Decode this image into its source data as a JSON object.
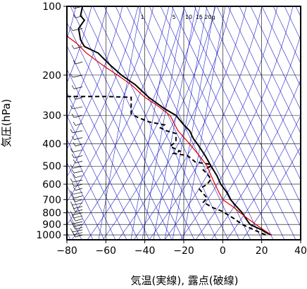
{
  "chart_data": {
    "type": "line",
    "xlabel": "気温(実線), 露点(破線)",
    "ylabel": "気圧(hPa)",
    "xlim": [
      -80,
      40
    ],
    "ylim": [
      1050,
      100
    ],
    "y_scale": "log",
    "x_ticks": [
      "−80",
      "−60",
      "−40",
      "−20",
      "0",
      "20",
      "40"
    ],
    "x_tick_values": [
      -80,
      -60,
      -40,
      -20,
      0,
      20,
      40
    ],
    "y_ticks": [
      "100",
      "200",
      "300",
      "400",
      "500",
      "600",
      "700",
      "800",
      "900",
      "1000"
    ],
    "y_tick_values": [
      100,
      200,
      300,
      400,
      500,
      600,
      700,
      800,
      900,
      1000
    ],
    "mixing_ratio_labels": [
      "1",
      "5",
      "10",
      "15",
      "20g"
    ],
    "colors": {
      "temperature": "#000000",
      "dewpoint": "#000000",
      "parcel": "#dd0000",
      "background_lines": "#2222cc",
      "grid": "#000000"
    },
    "grid": true,
    "series": [
      {
        "key": "temperature",
        "style": "solid",
        "points": [
          [
            25,
            1000
          ],
          [
            22,
            975
          ],
          [
            20,
            950
          ],
          [
            17,
            925
          ],
          [
            14,
            900
          ],
          [
            13,
            875
          ],
          [
            12,
            850
          ],
          [
            10,
            800
          ],
          [
            7,
            750
          ],
          [
            4,
            700
          ],
          [
            2,
            650
          ],
          [
            -1,
            600
          ],
          [
            -3,
            550
          ],
          [
            -6,
            500
          ],
          [
            -9,
            450
          ],
          [
            -13,
            400
          ],
          [
            -15,
            380
          ],
          [
            -17,
            350
          ],
          [
            -20,
            330
          ],
          [
            -24,
            300
          ],
          [
            -30,
            280
          ],
          [
            -38,
            250
          ],
          [
            -45,
            220
          ],
          [
            -52,
            200
          ],
          [
            -58,
            180
          ],
          [
            -64,
            160
          ],
          [
            -71,
            150
          ],
          [
            -73,
            140
          ],
          [
            -74,
            125
          ],
          [
            -71,
            115
          ],
          [
            -73,
            110
          ],
          [
            -72,
            100
          ]
        ]
      },
      {
        "key": "dewpoint",
        "style": "dashed",
        "points": [
          [
            22,
            1000
          ],
          [
            19,
            975
          ],
          [
            16,
            950
          ],
          [
            13,
            925
          ],
          [
            10,
            900
          ],
          [
            8,
            875
          ],
          [
            6,
            850
          ],
          [
            3,
            820
          ],
          [
            0,
            790
          ],
          [
            -5,
            760
          ],
          [
            -10,
            720
          ],
          [
            -8,
            690
          ],
          [
            -10,
            660
          ],
          [
            -12,
            630
          ],
          [
            -8,
            600
          ],
          [
            -6,
            570
          ],
          [
            -8,
            540
          ],
          [
            -10,
            520
          ],
          [
            -6,
            500
          ],
          [
            -7,
            490
          ],
          [
            -14,
            480
          ],
          [
            -18,
            450
          ],
          [
            -25,
            440
          ],
          [
            -22,
            430
          ],
          [
            -27,
            410
          ],
          [
            -24,
            390
          ],
          [
            -24,
            360
          ],
          [
            -29,
            350
          ],
          [
            -32,
            340
          ],
          [
            -30,
            330
          ],
          [
            -38,
            320
          ],
          [
            -44,
            305
          ],
          [
            -47,
            295
          ],
          [
            -47,
            250
          ],
          [
            -60,
            248
          ],
          [
            -80,
            248
          ]
        ]
      },
      {
        "key": "parcel",
        "style": "solid",
        "points": [
          [
            25,
            1000
          ],
          [
            21,
            950
          ],
          [
            17,
            900
          ],
          [
            13,
            850
          ],
          [
            9,
            800
          ],
          [
            5,
            750
          ],
          [
            0,
            700
          ],
          [
            -2,
            650
          ],
          [
            -4,
            600
          ],
          [
            -6,
            550
          ],
          [
            -8,
            500
          ],
          [
            -12,
            450
          ],
          [
            -17,
            400
          ],
          [
            -23,
            350
          ],
          [
            -27,
            300
          ],
          [
            -34,
            270
          ],
          [
            -40,
            250
          ],
          [
            -47,
            220
          ],
          [
            -54,
            200
          ],
          [
            -62,
            180
          ],
          [
            -70,
            160
          ],
          [
            -75,
            145
          ],
          [
            -80,
            135
          ]
        ]
      }
    ],
    "wind_barbs": {
      "x_position": -72,
      "pressures": [
        1000,
        975,
        950,
        925,
        900,
        875,
        850,
        825,
        800,
        775,
        750,
        725,
        700,
        675,
        650,
        625,
        600,
        575,
        550,
        525,
        500,
        475,
        450,
        425,
        400,
        375,
        350,
        325,
        300,
        275,
        250,
        225,
        200,
        175,
        150,
        125,
        110,
        100
      ]
    }
  }
}
